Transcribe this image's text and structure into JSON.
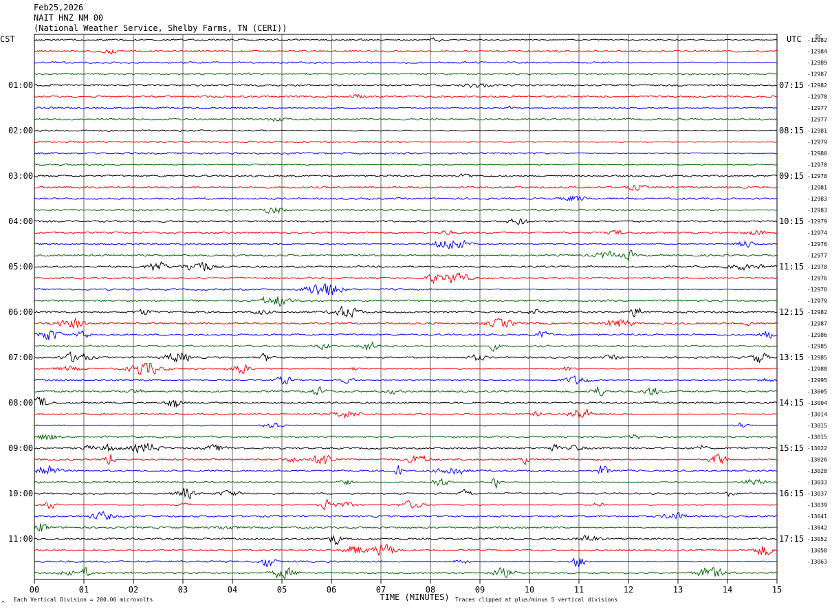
{
  "header": {
    "date": "Feb25,2026",
    "station": "NAIT HNZ NM 00",
    "source": "(National Weather Service, Shelby Farms, TN (CERI))"
  },
  "chart_data": {
    "type": "line",
    "left_tz": "CST",
    "right_tz": "UTC",
    "dc_label": "DC",
    "xlabel": "TIME (MINUTES)",
    "xlim": [
      0,
      15
    ],
    "x_ticks": [
      "00",
      "01",
      "02",
      "03",
      "04",
      "05",
      "06",
      "07",
      "08",
      "09",
      "10",
      "11",
      "12",
      "13",
      "14",
      "15"
    ],
    "trace_colors": [
      "#000000",
      "#ff0000",
      "#0000ff",
      "#006400"
    ],
    "hour_labels_left": [
      "01:00",
      "02:00",
      "03:00",
      "04:00",
      "05:00",
      "06:00",
      "07:00",
      "08:00",
      "09:00",
      "10:00",
      "11:00"
    ],
    "hour_labels_right": [
      "07:15",
      "08:15",
      "09:15",
      "10:15",
      "11:15",
      "12:15",
      "13:15",
      "14:15",
      "15:15",
      "16:15",
      "17:15"
    ],
    "hour_label_first_trace": 4,
    "trace_count": 48,
    "dc_offsets": [
      "-12982",
      "-12984",
      "-12989",
      "-12987",
      "-12982",
      "-12978",
      "-12977",
      "-12977",
      "-12981",
      "-12979",
      "-12980",
      "-12978",
      "-12978",
      "-12981",
      "-12983",
      "-12983",
      "-12979",
      "-12974",
      "-12976",
      "-12977",
      "-12978",
      "-12976",
      "-12978",
      "-12979",
      "-12982",
      "-12987",
      "-12986",
      "-12985",
      "-12985",
      "-12988",
      "-12995",
      "-13005",
      "-13004",
      "-13014",
      "-13015",
      "-13015",
      "-13022",
      "-13026",
      "-13028",
      "-13033",
      "-13037",
      "-13039",
      "-13041",
      "-13042",
      "-13052",
      "-13058",
      "-13063"
    ],
    "footer_left": "Each Vertical Division =  200.00 microvolts",
    "footer_right": "Traces clipped at plus/minus 5 vertical divisions",
    "corner_mark": "^"
  }
}
